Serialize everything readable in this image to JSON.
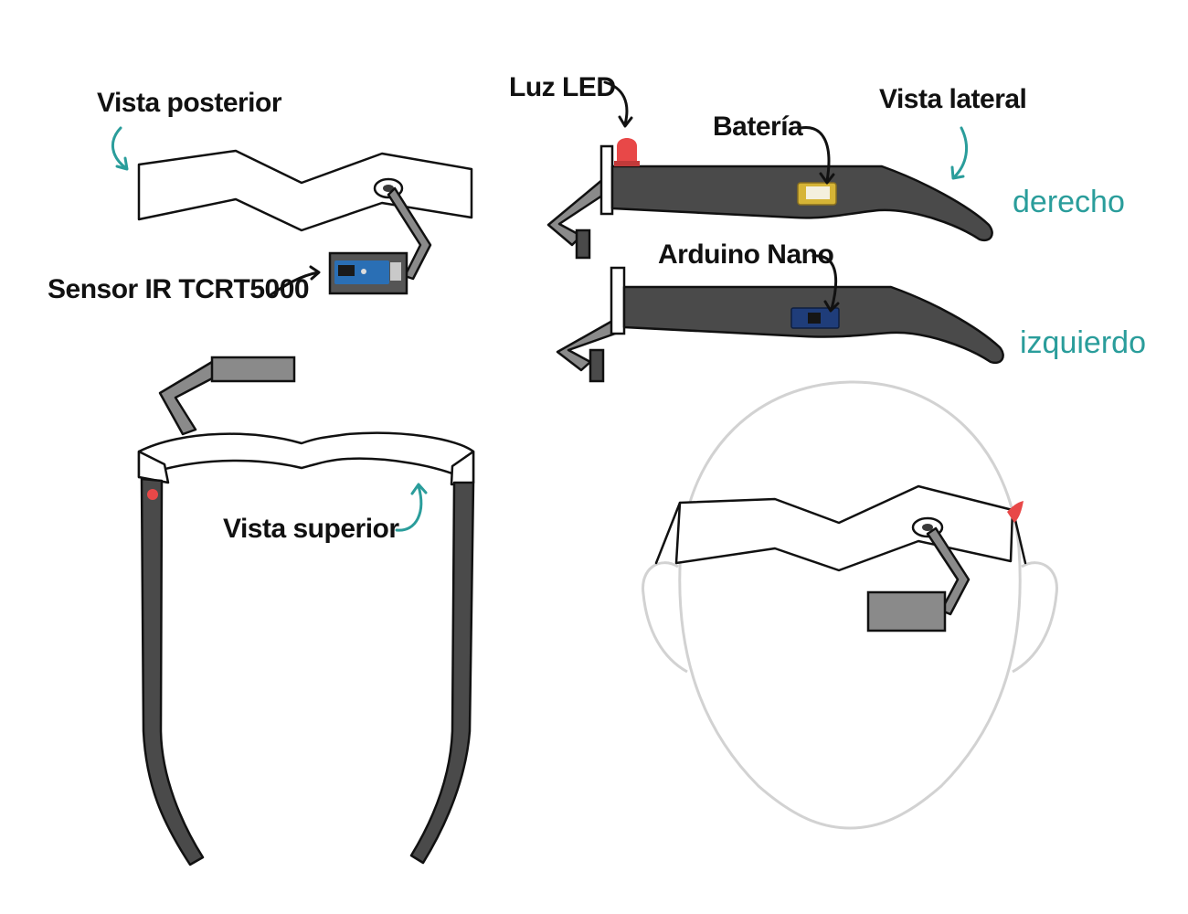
{
  "labels": {
    "rear_view": "Vista posterior",
    "side_view": "Vista lateral",
    "top_view": "Vista superior",
    "led": "Luz LED",
    "battery": "Batería",
    "arduino": "Arduino Nano",
    "ir_sensor": "Sensor IR TCRT5000",
    "right": "derecho",
    "left": "izquierdo"
  },
  "colors": {
    "accent_teal": "#2a9d9b",
    "arm_gray": "#4a4a4a",
    "frame_outline": "#111111",
    "box_gray": "#8a8a8a",
    "led_red": "#e84848",
    "head_outline": "#d2d2d2",
    "sensor_blue": "#2a6fb5",
    "battery_gold": "#d6b436",
    "arduino_navy": "#1f3d7a"
  }
}
